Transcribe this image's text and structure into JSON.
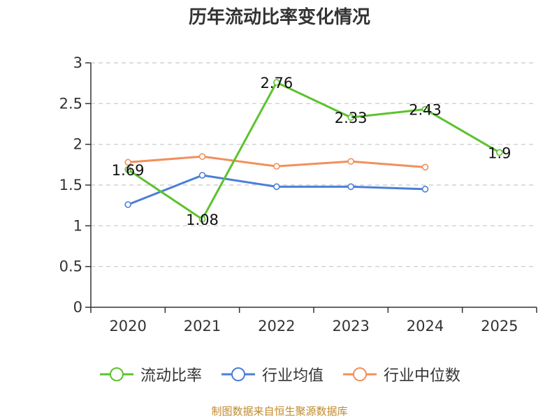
{
  "chart_data": {
    "type": "line",
    "title": "历年流动比率变化情况",
    "categories": [
      "2020",
      "2021",
      "2022",
      "2023",
      "2024",
      "2025"
    ],
    "ylim": [
      0,
      3
    ],
    "yticks": [
      0,
      0.5,
      1,
      1.5,
      2,
      2.5,
      3
    ],
    "ytick_labels": [
      "0",
      "0.5",
      "1",
      "1.5",
      "2",
      "2.5",
      "3"
    ],
    "grid": true,
    "legend_position": "bottom",
    "series": [
      {
        "name": "流动比率",
        "color": "#5cc22d",
        "values": [
          1.69,
          1.08,
          2.76,
          2.33,
          2.43,
          1.9
        ],
        "labels": [
          "1.69",
          "1.08",
          "2.76",
          "2.33",
          "2.43",
          "1.9"
        ],
        "show_labels": true
      },
      {
        "name": "行业均值",
        "color": "#4a7fd8",
        "values": [
          1.26,
          1.62,
          1.48,
          1.48,
          1.45,
          null
        ],
        "show_labels": false
      },
      {
        "name": "行业中位数",
        "color": "#f28f5c",
        "values": [
          1.78,
          1.85,
          1.73,
          1.79,
          1.72,
          null
        ],
        "show_labels": false
      }
    ]
  },
  "footer": "制图数据来自恒生聚源数据库"
}
